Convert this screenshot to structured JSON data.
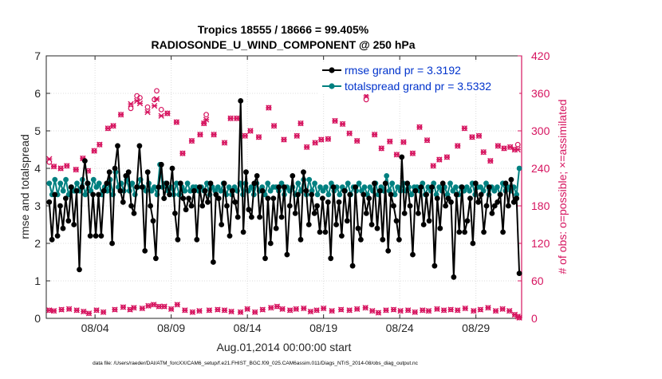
{
  "chart_data": {
    "type": "line",
    "title_line1": "Tropics 18555 / 18666 = 99.405%",
    "title_line2": "RADIOSONDE_U_WIND_COMPONENT @ 250 hPa",
    "xlabel": "Aug.01,2014 00:00:00 start",
    "ylabel_left": "rmse and totalspread",
    "ylabel_right": "# of obs: o=possible; ×=assimilated",
    "footnote": "data file: /Users/raeder/DAI/ATM_forcXX/CAM6_setup/f.e21.FHIST_BGC.f09_025.CAM6assim.011/Diags_NTrS_2014-08/obs_diag_output.nc",
    "xlim": [
      0.8,
      32.0
    ],
    "ylim_left": [
      0,
      7
    ],
    "ylim_right": [
      0,
      420
    ],
    "x_ticks": [
      {
        "x": 4,
        "label": "08/04"
      },
      {
        "x": 9,
        "label": "08/09"
      },
      {
        "x": 14,
        "label": "08/14"
      },
      {
        "x": 19,
        "label": "08/19"
      },
      {
        "x": 24,
        "label": "08/24"
      },
      {
        "x": 29,
        "label": "08/29"
      }
    ],
    "y_ticks_left": [
      "0",
      "1",
      "2",
      "3",
      "4",
      "5",
      "6",
      "7"
    ],
    "y_ticks_right": [
      "0",
      "60",
      "120",
      "180",
      "240",
      "300",
      "360",
      "420"
    ],
    "legend": {
      "position": "top-right",
      "entries": [
        "rmse grand pr = 3.3192",
        "totalspread grand pr = 3.5332"
      ]
    },
    "colors": {
      "rmse": "#000000",
      "totalspread": "#008080",
      "obs": "#d6145f",
      "legend_text": "#0033cc",
      "axis": "#262626"
    },
    "series": [
      {
        "name": "rmse",
        "axis": "left",
        "values": [
          3.1,
          2.1,
          3.3,
          2.2,
          3.0,
          2.4,
          3.2,
          2.6,
          3.5,
          2.5,
          3.4,
          1.3,
          3.5,
          4.2,
          3.6,
          2.2,
          3.3,
          2.2,
          3.3,
          2.2,
          3.4,
          3.6,
          3.9,
          2.0,
          4.0,
          4.6,
          3.4,
          3.1,
          3.8,
          3.9,
          3.0,
          2.8,
          3.5,
          4.6,
          3.5,
          1.8,
          3.9,
          3.0,
          2.6,
          1.6,
          3.5,
          4.1,
          3.2,
          3.6,
          3.3,
          4.0,
          2.8,
          2.1,
          3.6,
          3.2,
          2.9,
          3.2,
          3.0,
          3.4,
          2.1,
          3.5,
          3.0,
          3.4,
          3.1,
          3.6,
          1.5,
          3.3,
          3.2,
          2.5,
          3.6,
          3.0,
          2.2,
          3.4,
          3.1,
          2.7,
          5.8,
          2.3,
          3.9,
          2.9,
          2.7,
          3.6,
          3.8,
          2.7,
          3.4,
          1.6,
          3.2,
          2.0,
          3.2,
          2.4,
          3.5,
          2.7,
          3.5,
          1.7,
          3.0,
          3.8,
          2.8,
          3.3,
          2.1,
          3.9,
          3.4,
          2.5,
          3.3,
          2.8,
          3.0,
          2.3,
          3.2,
          2.3,
          3.1,
          1.6,
          3.5,
          2.5,
          3.1,
          2.2,
          3.4,
          2.6,
          3.3,
          1.4,
          3.5,
          2.4,
          2.1,
          3.3,
          2.8,
          3.2,
          2.5,
          3.6,
          2.4,
          3.4,
          2.1,
          3.6,
          1.8,
          3.3,
          3.0,
          2.6,
          2.1,
          4.3,
          2.8,
          3.6,
          3.0,
          1.7,
          3.4,
          2.8,
          3.5,
          2.5,
          3.3,
          2.6,
          3.5,
          1.4,
          3.2,
          2.4,
          3.6,
          3.0,
          3.2,
          3.1,
          1.1,
          3.3,
          2.3,
          3.5,
          2.3,
          2.6,
          3.2,
          2.0,
          3.6,
          3.1,
          3.3,
          2.3,
          3.0,
          3.5,
          2.8,
          3.0,
          3.1,
          3.3,
          2.3,
          3.6,
          3.0,
          3.7,
          3.1,
          3.2,
          1.2
        ]
      },
      {
        "name": "totalspread",
        "axis": "left",
        "values": [
          3.6,
          3.3,
          3.7,
          3.3,
          3.6,
          3.4,
          3.7,
          3.3,
          3.5,
          3.4,
          3.6,
          3.4,
          3.7,
          3.3,
          3.6,
          3.4,
          3.7,
          3.5,
          3.6,
          3.3,
          3.5,
          3.4,
          3.7,
          3.3,
          3.9,
          3.5,
          3.6,
          3.4,
          3.7,
          3.4,
          3.6,
          3.3,
          3.5,
          3.7,
          3.5,
          3.4,
          3.6,
          3.4,
          3.5,
          3.3,
          4.1,
          3.5,
          3.6,
          3.4,
          3.5,
          3.3,
          3.6,
          3.3,
          3.5,
          3.4,
          3.6,
          3.4,
          3.5,
          3.5,
          3.4,
          3.5,
          3.4,
          3.6,
          3.3,
          3.5,
          3.4,
          3.5,
          3.4,
          3.6,
          3.3,
          3.5,
          3.3,
          3.5,
          3.4,
          3.6,
          3.3,
          3.6,
          3.4,
          3.5,
          3.3,
          3.6,
          3.4,
          3.5,
          3.3,
          3.6,
          3.4,
          3.5,
          3.5,
          3.4,
          3.6,
          3.3,
          3.5,
          3.4,
          3.5,
          3.3,
          3.6,
          3.4,
          3.7,
          3.3,
          3.7,
          3.4,
          3.6,
          3.3,
          3.5,
          3.4,
          3.5,
          3.3,
          3.6,
          3.4,
          3.5,
          3.3,
          3.5,
          3.4,
          3.6,
          3.3,
          3.5,
          3.4,
          3.6,
          3.4,
          3.5,
          3.3,
          3.5,
          3.4,
          3.6,
          3.3,
          3.5,
          3.4,
          3.8,
          3.4,
          3.6,
          3.3,
          3.5,
          3.4,
          3.6,
          3.4,
          3.5,
          3.3,
          3.5,
          3.5,
          3.4,
          3.6,
          3.3,
          3.5,
          3.4,
          3.6,
          3.3,
          3.5,
          3.4,
          3.5,
          3.3,
          3.6,
          3.4,
          3.5,
          3.3,
          3.5,
          3.4,
          3.5,
          3.4,
          3.6,
          3.3,
          3.5,
          3.5,
          3.4,
          3.6,
          3.3,
          3.5,
          3.4,
          3.5,
          3.3,
          3.6,
          3.4,
          3.5,
          3.4,
          3.5,
          3.3,
          4.0
        ]
      }
    ],
    "obs_possible_points": [
      [
        1.0,
        250
      ],
      [
        1.3,
        243
      ],
      [
        1.75,
        240
      ],
      [
        2.15,
        244
      ],
      [
        2.75,
        238
      ],
      [
        3.2,
        256
      ],
      [
        3.55,
        236
      ],
      [
        3.95,
        268
      ],
      [
        4.3,
        278
      ],
      [
        4.85,
        304
      ],
      [
        5.2,
        308
      ],
      [
        5.7,
        326
      ],
      [
        6.35,
        336
      ],
      [
        6.75,
        356
      ],
      [
        6.95,
        353
      ],
      [
        7.45,
        338
      ],
      [
        7.9,
        350
      ],
      [
        8.05,
        364
      ],
      [
        8.35,
        334
      ],
      [
        8.75,
        328
      ],
      [
        9.35,
        314
      ],
      [
        9.75,
        264
      ],
      [
        10.35,
        284
      ],
      [
        10.9,
        294
      ],
      [
        11.15,
        312
      ],
      [
        11.3,
        326
      ],
      [
        11.8,
        294
      ],
      [
        12.5,
        281
      ],
      [
        12.9,
        320
      ],
      [
        13.3,
        320
      ],
      [
        13.85,
        292
      ],
      [
        14.2,
        300
      ],
      [
        14.75,
        290
      ],
      [
        15.4,
        337
      ],
      [
        15.75,
        308
      ],
      [
        16.4,
        286
      ],
      [
        17.25,
        292
      ],
      [
        17.5,
        312
      ],
      [
        17.9,
        274
      ],
      [
        18.45,
        281
      ],
      [
        18.85,
        286
      ],
      [
        19.3,
        287
      ],
      [
        19.75,
        316
      ],
      [
        20.25,
        311
      ],
      [
        20.7,
        296
      ],
      [
        21.2,
        284
      ],
      [
        21.8,
        350
      ],
      [
        22.35,
        294
      ],
      [
        22.8,
        272
      ],
      [
        23.35,
        283
      ],
      [
        23.8,
        262
      ],
      [
        24.25,
        282
      ],
      [
        24.85,
        264
      ],
      [
        25.3,
        306
      ],
      [
        25.8,
        285
      ],
      [
        26.2,
        244
      ],
      [
        26.6,
        254
      ],
      [
        27.1,
        258
      ],
      [
        27.8,
        276
      ],
      [
        28.25,
        304
      ],
      [
        28.75,
        290
      ],
      [
        29.2,
        292
      ],
      [
        29.5,
        266
      ],
      [
        29.95,
        252
      ],
      [
        30.45,
        276
      ],
      [
        30.85,
        272
      ],
      [
        31.25,
        274
      ],
      [
        31.55,
        270
      ],
      [
        31.75,
        278
      ]
    ],
    "obs_assimilated_points": [
      [
        1.0,
        255
      ],
      [
        1.3,
        243
      ],
      [
        1.75,
        240
      ],
      [
        2.15,
        244
      ],
      [
        2.75,
        238
      ],
      [
        3.2,
        256
      ],
      [
        3.55,
        236
      ],
      [
        3.95,
        268
      ],
      [
        4.3,
        278
      ],
      [
        4.85,
        304
      ],
      [
        5.2,
        308
      ],
      [
        5.7,
        326
      ],
      [
        6.35,
        343
      ],
      [
        6.75,
        348
      ],
      [
        6.95,
        344
      ],
      [
        7.45,
        330
      ],
      [
        7.9,
        340
      ],
      [
        8.05,
        351
      ],
      [
        8.35,
        324
      ],
      [
        8.75,
        328
      ],
      [
        9.35,
        314
      ],
      [
        9.75,
        264
      ],
      [
        10.35,
        284
      ],
      [
        10.9,
        294
      ],
      [
        11.15,
        312
      ],
      [
        11.3,
        318
      ],
      [
        11.8,
        294
      ],
      [
        12.5,
        281
      ],
      [
        12.9,
        320
      ],
      [
        13.3,
        320
      ],
      [
        13.85,
        292
      ],
      [
        14.2,
        300
      ],
      [
        14.75,
        290
      ],
      [
        15.4,
        337
      ],
      [
        15.75,
        308
      ],
      [
        16.4,
        286
      ],
      [
        17.25,
        292
      ],
      [
        17.5,
        312
      ],
      [
        17.9,
        274
      ],
      [
        18.45,
        281
      ],
      [
        18.85,
        286
      ],
      [
        19.3,
        287
      ],
      [
        19.75,
        316
      ],
      [
        20.25,
        311
      ],
      [
        20.7,
        296
      ],
      [
        21.2,
        284
      ],
      [
        21.8,
        356
      ],
      [
        22.35,
        294
      ],
      [
        22.8,
        272
      ],
      [
        23.35,
        283
      ],
      [
        23.8,
        262
      ],
      [
        24.25,
        282
      ],
      [
        24.85,
        264
      ],
      [
        25.3,
        306
      ],
      [
        25.8,
        285
      ],
      [
        26.2,
        244
      ],
      [
        26.6,
        254
      ],
      [
        27.1,
        258
      ],
      [
        27.8,
        276
      ],
      [
        28.25,
        304
      ],
      [
        28.75,
        290
      ],
      [
        29.2,
        292
      ],
      [
        29.5,
        266
      ],
      [
        29.95,
        252
      ],
      [
        30.45,
        276
      ],
      [
        30.85,
        272
      ],
      [
        31.25,
        274
      ],
      [
        31.55,
        270
      ],
      [
        31.75,
        270
      ]
    ],
    "obs_low_points": [
      [
        1.0,
        13
      ],
      [
        1.3,
        12
      ],
      [
        1.8,
        14
      ],
      [
        2.3,
        15
      ],
      [
        2.8,
        13
      ],
      [
        3.25,
        11
      ],
      [
        3.6,
        8
      ],
      [
        4.1,
        13
      ],
      [
        4.55,
        10
      ],
      [
        5.3,
        14
      ],
      [
        5.85,
        18
      ],
      [
        6.3,
        14
      ],
      [
        6.55,
        17
      ],
      [
        7.1,
        16
      ],
      [
        7.5,
        20
      ],
      [
        7.85,
        22
      ],
      [
        8.2,
        19
      ],
      [
        8.55,
        19
      ],
      [
        9.0,
        15
      ],
      [
        9.4,
        22
      ],
      [
        9.9,
        13
      ],
      [
        10.4,
        10
      ],
      [
        10.85,
        12
      ],
      [
        11.5,
        13
      ],
      [
        12.05,
        14
      ],
      [
        12.5,
        13
      ],
      [
        12.95,
        11
      ],
      [
        13.55,
        10
      ],
      [
        14.0,
        15
      ],
      [
        14.5,
        10
      ],
      [
        15.0,
        14
      ],
      [
        15.55,
        17
      ],
      [
        15.95,
        19
      ],
      [
        16.3,
        15
      ],
      [
        16.8,
        13
      ],
      [
        17.2,
        15
      ],
      [
        17.7,
        16
      ],
      [
        18.15,
        11
      ],
      [
        18.55,
        13
      ],
      [
        19.0,
        16
      ],
      [
        19.55,
        12
      ],
      [
        20.15,
        14
      ],
      [
        20.7,
        13
      ],
      [
        21.2,
        15
      ],
      [
        21.75,
        17
      ],
      [
        22.2,
        12
      ],
      [
        22.6,
        9
      ],
      [
        23.1,
        13
      ],
      [
        23.6,
        14
      ],
      [
        24.05,
        12
      ],
      [
        24.55,
        13
      ],
      [
        25.0,
        10
      ],
      [
        25.5,
        13
      ],
      [
        25.9,
        12
      ],
      [
        26.45,
        15
      ],
      [
        26.9,
        13
      ],
      [
        27.35,
        14
      ],
      [
        27.8,
        13
      ],
      [
        28.3,
        16
      ],
      [
        28.85,
        12
      ],
      [
        29.3,
        14
      ],
      [
        29.8,
        17
      ],
      [
        30.3,
        12
      ],
      [
        30.75,
        15
      ],
      [
        31.2,
        12
      ],
      [
        31.55,
        6
      ],
      [
        31.75,
        3
      ],
      [
        31.85,
        1
      ]
    ]
  }
}
